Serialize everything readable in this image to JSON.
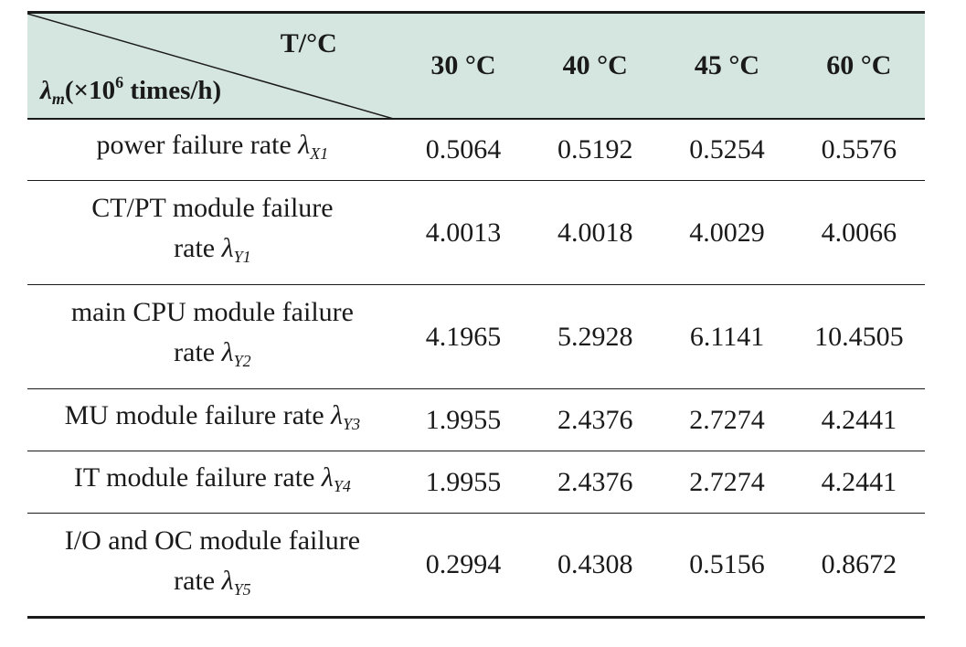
{
  "header": {
    "corner_top": "T/°C",
    "corner_bottom_symbol": "λ",
    "corner_bottom_sub": "m",
    "corner_bottom_pre": "(×10",
    "corner_bottom_exp": "6",
    "corner_bottom_post": " times/h)",
    "columns": [
      "30 °C",
      "40 °C",
      "45 °C",
      "60 °C"
    ]
  },
  "rows": [
    {
      "label_line1": "power failure rate",
      "label_line2": "",
      "symbol": "λ",
      "sub": "X1",
      "values": [
        "0.5064",
        "0.5192",
        "0.5254",
        "0.5576"
      ]
    },
    {
      "label_line1": "CT/PT module failure",
      "label_line2": "rate",
      "symbol": "λ",
      "sub": "Y1",
      "values": [
        "4.0013",
        "4.0018",
        "4.0029",
        "4.0066"
      ]
    },
    {
      "label_line1": "main CPU module failure",
      "label_line2": "rate",
      "symbol": "λ",
      "sub": "Y2",
      "values": [
        "4.1965",
        "5.2928",
        "6.1141",
        "10.4505"
      ]
    },
    {
      "label_line1": "MU module failure rate",
      "label_line2": "",
      "symbol": "λ",
      "sub": "Y3",
      "values": [
        "1.9955",
        "2.4376",
        "2.7274",
        "4.2441"
      ]
    },
    {
      "label_line1": "IT module failure rate",
      "label_line2": "",
      "symbol": "λ",
      "sub": "Y4",
      "values": [
        "1.9955",
        "2.4376",
        "2.7274",
        "4.2441"
      ]
    },
    {
      "label_line1": "I/O and OC module failure",
      "label_line2": "rate",
      "symbol": "λ",
      "sub": "Y5",
      "values": [
        "0.2994",
        "0.4308",
        "0.5156",
        "0.8672"
      ]
    }
  ],
  "colors": {
    "header_bg": "#d5e6e1",
    "rule": "#1a1a1a"
  }
}
